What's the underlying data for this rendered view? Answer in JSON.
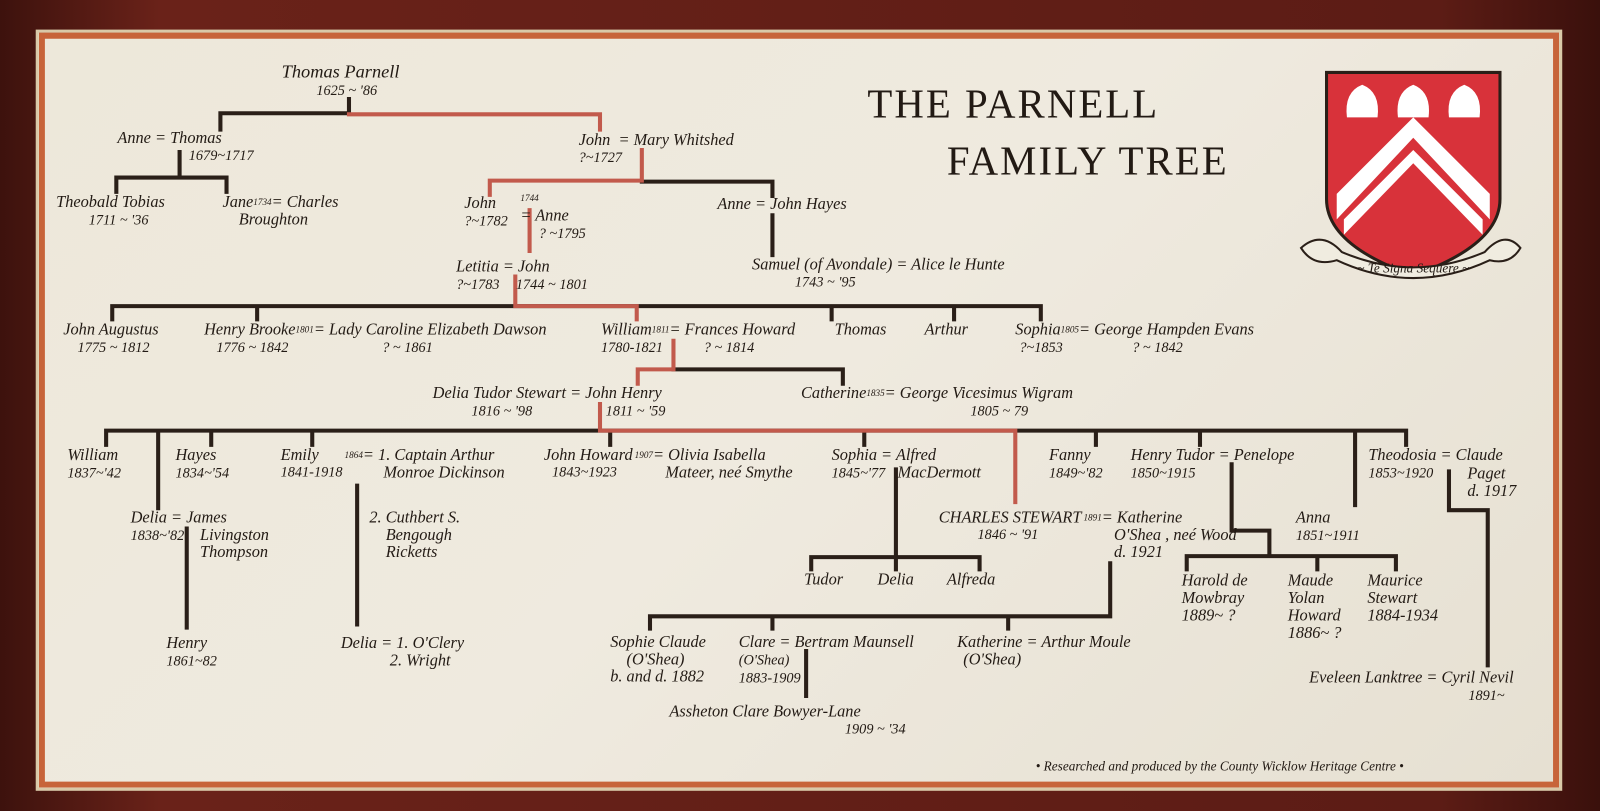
{
  "title": {
    "line1": "THE PARNELL",
    "line2": "FAMILY TREE"
  },
  "crest": {
    "motto": "~ Te Signa Sequere ~",
    "colors": {
      "field": "#d8323a",
      "charge": "#ffffff"
    }
  },
  "credit": "• Researched and produced by the County Wicklow Heritage Centre •",
  "line_colors": {
    "main": "#2a1f18",
    "direct_line": "#c25a4c"
  },
  "people": {
    "thomas_parnell": {
      "name": "Thomas Parnell",
      "dates": "1625 ~ '86"
    },
    "anne_thomas": {
      "name": "Anne = Thomas",
      "dates": "1679~1717"
    },
    "theobald": {
      "name": "Theobald Tobias",
      "dates": "1711 ~ '36"
    },
    "jane": {
      "name": "Jane",
      "year": "1734",
      "spouse": "= Charles\n    Broughton"
    },
    "john_mary": {
      "name": "John",
      "spouse": "= Mary Whitshed",
      "dates": "?~1727"
    },
    "john_1782": {
      "name": "John",
      "dates": "?~1782"
    },
    "anne_1795": {
      "year": "1744",
      "name": "= Anne",
      "dates": "? ~1795"
    },
    "anne_hayes": {
      "name": "Anne = John Hayes"
    },
    "samuel": {
      "name": "Samuel (of Avondale) = Alice le Hunte",
      "dates": "1743 ~ '95"
    },
    "letitia_john": {
      "name": "Letitia = John",
      "dates1": "?~1783",
      "dates2": "1744 ~ 1801"
    },
    "john_augustus": {
      "name": "John Augustus",
      "dates": "1775 ~ 1812"
    },
    "henry_brooke": {
      "name": "Henry Brooke",
      "year": "1801",
      "spouse": "= Lady Caroline Elizabeth Dawson",
      "dates1": "1776 ~ 1842",
      "dates2": "? ~ 1861"
    },
    "william_1780": {
      "name": "William",
      "year": "1811",
      "spouse": "= Frances Howard",
      "dates1": "1780-1821",
      "dates2": "? ~ 1814"
    },
    "thomas_2": {
      "name": "Thomas"
    },
    "arthur": {
      "name": "Arthur"
    },
    "sophia_1853": {
      "name": "Sophia",
      "year": "1805",
      "spouse": "= George Hampden Evans",
      "dates1": "?~1853",
      "dates2": "? ~ 1842"
    },
    "delia_john_henry": {
      "name": "Delia Tudor Stewart = John Henry",
      "dates1": "1816 ~ '98",
      "dates2": "1811 ~ '59"
    },
    "catherine": {
      "name": "Catherine",
      "year": "1835",
      "spouse": "= George Vicesimus Wigram",
      "dates": "1805 ~ 79"
    },
    "william_1837": {
      "name": "William",
      "dates": "1837~'42"
    },
    "hayes": {
      "name": "Hayes",
      "dates": "1834~'54"
    },
    "emily": {
      "name": "Emily",
      "year": "1864",
      "spouse": "= 1. Captain Arthur\n     Monroe Dickinson",
      "dates": "1841-1918"
    },
    "emily_spouse2": {
      "name": "2. Cuthbert S.\n    Bengough\n    Ricketts"
    },
    "john_howard": {
      "name": "John Howard",
      "year": "1907",
      "spouse": "= Olivia Isabella\n   Mateer, neé Smythe",
      "dates": "1843~1923"
    },
    "sophia_1845": {
      "name": "Sophia = Alfred",
      "spouse2": "MacDermott",
      "dates": "1845~'77"
    },
    "charles_stewart": {
      "name": "CHARLES STEWART",
      "year": "1891",
      "spouse": "= Katherine\n   O'Shea , neé Wood\n   d. 1921",
      "dates": "1846 ~ '91"
    },
    "fanny": {
      "name": "Fanny",
      "dates": "1849~'82"
    },
    "henry_tudor": {
      "name": "Henry Tudor = Penelope",
      "dates": "1850~1915"
    },
    "anna": {
      "name": "Anna",
      "dates": "1851~1911"
    },
    "theodosia": {
      "name": "Theodosia = Claude",
      "spouse2": "Paget\nd. 1917",
      "dates": "1853~1920"
    },
    "delia_1838": {
      "name": "Delia = James",
      "spouse2": "Livingston\nThompson",
      "dates": "1838~'82"
    },
    "tudor": {
      "name": "Tudor"
    },
    "delia_2": {
      "name": "Delia"
    },
    "alfreda": {
      "name": "Alfreda"
    },
    "harold": {
      "name": "Harold de\nMowbray\n1889~ ?"
    },
    "maude": {
      "name": "Maude\nYolan\nHoward\n1886~ ?"
    },
    "maurice": {
      "name": "Maurice\nStewart\n1884-1934"
    },
    "henry_1861": {
      "name": "Henry",
      "dates": "1861~82"
    },
    "delia_oclery": {
      "name": "Delia = 1. O'Clery\n            2. Wright"
    },
    "sophie_claude": {
      "name": "Sophie Claude\n    (O'Shea)\nb. and d. 1882"
    },
    "clare": {
      "name": "Clare = Bertram Maunsell",
      "detail": "(O'Shea)\n1883-1909"
    },
    "katherine_moule": {
      "name": "Katherine = Arthur Moule",
      "detail": "(O'Shea)"
    },
    "eveleen": {
      "name": "Eveleen Lanktree = Cyril Nevil",
      "dates": "1891~"
    },
    "assheton": {
      "name": "Assheton Clare Bowyer-Lane",
      "dates": "1909 ~ '34"
    }
  }
}
